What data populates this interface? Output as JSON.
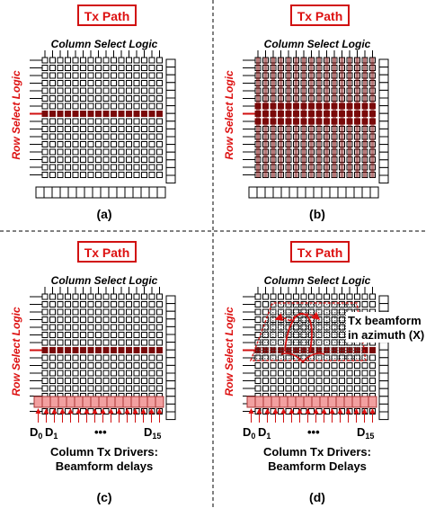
{
  "panels": [
    {
      "id": "a",
      "label": "(a)",
      "title": "Tx Path",
      "column_select": "Column Select Logic",
      "row_select": "Row Select Logic"
    },
    {
      "id": "b",
      "label": "(b)",
      "title": "Tx Path",
      "column_select": "Column Select Logic",
      "row_select": "Row Select Logic"
    },
    {
      "id": "c",
      "label": "(c)",
      "title": "Tx Path",
      "column_select": "Column Select Logic",
      "row_select": "Row Select Logic",
      "drivers": {
        "d0": "D",
        "d0_sub": "0",
        "d1": "D",
        "d1_sub": "1",
        "dots": "•••",
        "d15": "D",
        "d15_sub": "15"
      },
      "caption_line1": "Column Tx Drivers:",
      "caption_line2": "Beamform delays"
    },
    {
      "id": "d",
      "label": "(d)",
      "title": "Tx Path",
      "column_select": "Column Select Logic",
      "row_select": "Row Select Logic",
      "drivers": {
        "d0": "D",
        "d0_sub": "0",
        "d1": "D",
        "d1_sub": "1",
        "dots": "•••",
        "d15": "D",
        "d15_sub": "15"
      },
      "caption_line1": "Column Tx Drivers:",
      "caption_line2": "Beamform Delays",
      "beam_line1": "Tx beamform",
      "beam_line2": "in azimuth (X)"
    }
  ],
  "colors": {
    "red": "#d11111",
    "dark_red": "#7a0a0a",
    "pink": "#f2a0a0",
    "line": "#000000"
  }
}
